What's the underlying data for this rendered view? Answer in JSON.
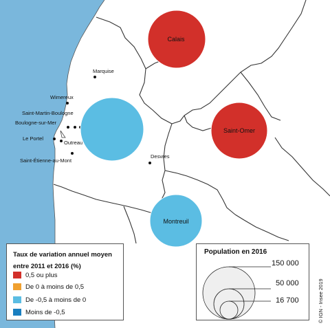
{
  "map": {
    "colors": {
      "sea": "#7ab7dc",
      "land": "#ffffff",
      "border": "#333333",
      "coast": "#555555"
    },
    "communes": [
      {
        "name": "Marquise"
      },
      {
        "name": "Wimereux"
      },
      {
        "name": "Saint-Martin-Boulogne"
      },
      {
        "name": "Boulogne-sur-Mer"
      },
      {
        "name": "Le Portel"
      },
      {
        "name": "Outreau"
      },
      {
        "name": "Saint-Étienne-au-Mont"
      },
      {
        "name": "Desvres"
      }
    ],
    "proportional_circles": [
      {
        "name": "Calais",
        "class": "0,5 ou plus",
        "color": "#d2302a"
      },
      {
        "name": "Saint-Omer",
        "class": "0,5 ou plus",
        "color": "#d2302a"
      },
      {
        "name": "",
        "class": "De -0,5 à moins de 0",
        "color": "#5bbde3"
      },
      {
        "name": "Montreuil",
        "class": "De -0,5 à moins de 0",
        "color": "#5bbde3"
      }
    ]
  },
  "legend_rate": {
    "title": "Taux de variation annuel moyen entre 2011 et 2016 (%)",
    "items": [
      {
        "label": "0,5 ou plus",
        "color": "#d2302a"
      },
      {
        "label": "De 0  à moins de 0,5",
        "color": "#f0a030"
      },
      {
        "label": "De -0,5 à moins de 0",
        "color": "#5bbde3"
      },
      {
        "label": "Moins de -0,5",
        "color": "#1a7fc0"
      }
    ]
  },
  "legend_population": {
    "title": "Population en 2016",
    "values": [
      "150 000",
      "50 000",
      "16 700"
    ]
  },
  "credit": "© IGN - Insee 2019"
}
